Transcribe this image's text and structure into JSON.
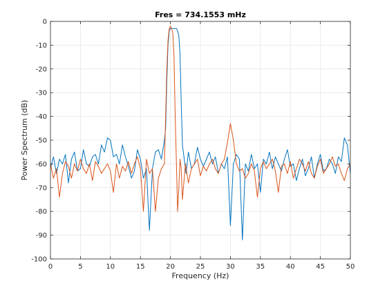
{
  "chart_data": {
    "type": "line",
    "title": "Fres = 734.1553 mHz",
    "xlabel": "Frequency (Hz)",
    "ylabel": "Power Spectrum (dB)",
    "xlim": [
      0,
      50
    ],
    "ylim": [
      -100,
      0
    ],
    "x_ticks": [
      "0",
      "5",
      "10",
      "15",
      "20",
      "25",
      "30",
      "35",
      "40",
      "45",
      "50"
    ],
    "y_ticks": [
      "0",
      "-10",
      "-20",
      "-30",
      "-40",
      "-50",
      "-60",
      "-70",
      "-80",
      "-90",
      "-100"
    ],
    "grid": true,
    "series": [
      {
        "color": "#0072BD",
        "x": [
          0,
          0.5,
          1,
          1.5,
          2,
          2.5,
          3,
          3.5,
          4,
          4.5,
          5,
          5.5,
          6,
          6.5,
          7,
          7.5,
          8,
          8.5,
          9,
          9.5,
          10,
          10.5,
          11,
          11.5,
          12,
          12.5,
          13,
          13.5,
          14,
          14.5,
          15,
          15.5,
          16,
          16.5,
          17,
          17.5,
          18,
          18.5,
          19,
          19.2,
          19.4,
          19.6,
          19.8,
          20,
          20.2,
          20.5,
          20.8,
          21,
          21.2,
          21.4,
          21.6,
          21.8,
          22,
          22.3,
          22.6,
          23,
          23.5,
          24,
          24.5,
          25,
          25.5,
          26,
          26.5,
          27,
          27.5,
          28,
          28.5,
          29,
          29.5,
          30,
          30.5,
          31,
          31.5,
          32,
          32.5,
          33,
          33.5,
          34,
          34.5,
          35,
          35.5,
          36,
          36.5,
          37,
          37.5,
          38,
          38.5,
          39,
          39.5,
          40,
          40.5,
          41,
          41.5,
          42,
          42.5,
          43,
          43.5,
          44,
          44.5,
          45,
          45.5,
          46,
          46.5,
          47,
          47.5,
          48,
          48.5,
          49,
          49.5,
          50
        ],
        "y": [
          -62,
          -57,
          -64,
          -58,
          -60,
          -56,
          -68,
          -58,
          -55,
          -63,
          -62,
          -54,
          -60,
          -61,
          -57,
          -56,
          -60,
          -52,
          -55,
          -49,
          -50,
          -57,
          -56,
          -60,
          -52,
          -57,
          -61,
          -66,
          -63,
          -54,
          -58,
          -66,
          -62,
          -88,
          -62,
          -55,
          -54,
          -58,
          -50,
          -45,
          -25,
          -10,
          -4,
          -3,
          -3,
          -3,
          -3,
          -3,
          -4,
          -6,
          -14,
          -34,
          -52,
          -58,
          -64,
          -55,
          -62,
          -60,
          -53,
          -58,
          -61,
          -58,
          -55,
          -60,
          -57,
          -64,
          -60,
          -62,
          -57,
          -86,
          -60,
          -56,
          -58,
          -92,
          -60,
          -63,
          -56,
          -62,
          -60,
          -72,
          -58,
          -60,
          -55,
          -62,
          -57,
          -60,
          -63,
          -58,
          -54,
          -61,
          -60,
          -67,
          -62,
          -58,
          -65,
          -62,
          -57,
          -66,
          -60,
          -56,
          -63,
          -62,
          -58,
          -60,
          -64,
          -57,
          -59,
          -49,
          -52,
          -64
        ]
      },
      {
        "color": "#D95319",
        "x": [
          0,
          0.5,
          1,
          1.5,
          2,
          2.5,
          3,
          3.5,
          4,
          4.5,
          5,
          5.5,
          6,
          6.5,
          7,
          7.5,
          8,
          8.5,
          9,
          9.5,
          10,
          10.5,
          11,
          11.5,
          12,
          12.5,
          13,
          13.5,
          14,
          14.5,
          15,
          15.5,
          16,
          16.5,
          17,
          17.5,
          18,
          18.5,
          19,
          19.2,
          19.4,
          19.6,
          19.8,
          20,
          20.2,
          20.4,
          20.6,
          20.8,
          21,
          21.2,
          21.4,
          21.6,
          21.8,
          22,
          22.5,
          23,
          23.5,
          24,
          24.5,
          25,
          25.5,
          26,
          26.5,
          27,
          27.5,
          28,
          28.5,
          29,
          29.5,
          30,
          30.5,
          31,
          31.5,
          32,
          32.5,
          33,
          33.5,
          34,
          34.5,
          35,
          35.5,
          36,
          36.5,
          37,
          37.5,
          38,
          38.5,
          39,
          39.5,
          40,
          40.5,
          41,
          41.5,
          42,
          42.5,
          43,
          43.5,
          44,
          44.5,
          45,
          45.5,
          46,
          46.5,
          47,
          47.5,
          48,
          48.5,
          49,
          49.5,
          50
        ],
        "y": [
          -60,
          -66,
          -62,
          -74,
          -64,
          -59,
          -61,
          -66,
          -60,
          -63,
          -58,
          -62,
          -64,
          -60,
          -67,
          -59,
          -61,
          -64,
          -62,
          -60,
          -63,
          -72,
          -60,
          -66,
          -61,
          -63,
          -59,
          -64,
          -60,
          -57,
          -62,
          -80,
          -58,
          -64,
          -62,
          -80,
          -66,
          -62,
          -60,
          -40,
          -20,
          -8,
          -3,
          -2,
          -3,
          -5,
          -15,
          -40,
          -60,
          -80,
          -70,
          -58,
          -62,
          -75,
          -60,
          -68,
          -62,
          -60,
          -58,
          -65,
          -61,
          -63,
          -60,
          -58,
          -62,
          -64,
          -60,
          -58,
          -51,
          -43,
          -50,
          -60,
          -63,
          -62,
          -66,
          -64,
          -60,
          -63,
          -74,
          -62,
          -59,
          -62,
          -60,
          -58,
          -63,
          -72,
          -61,
          -60,
          -64,
          -59,
          -66,
          -62,
          -58,
          -60,
          -63,
          -59,
          -64,
          -66,
          -61,
          -58,
          -64,
          -62,
          -60,
          -57,
          -61,
          -60,
          -64,
          -67,
          -62,
          -60
        ]
      }
    ]
  }
}
